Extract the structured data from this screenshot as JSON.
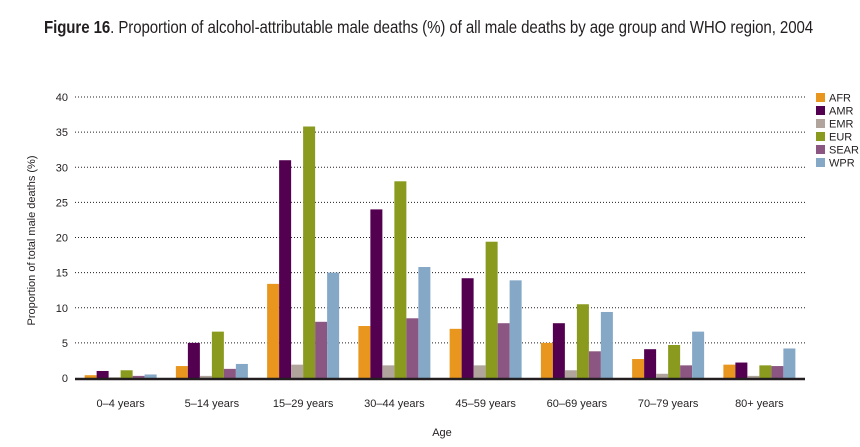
{
  "figure": {
    "label": "Figure 16",
    "title_rest": ". Proportion of alcohol-attributable male deaths (%) of all male deaths by age group and WHO region, 2004"
  },
  "chart_data": {
    "type": "bar",
    "title": "Figure 16. Proportion of alcohol-attributable male deaths (%) of all male deaths by age group and WHO region, 2004",
    "xlabel": "Age",
    "ylabel": "Proportion of total male deaths (%)",
    "ylim": [
      0,
      40
    ],
    "yticks": [
      0,
      5,
      10,
      15,
      20,
      25,
      30,
      35,
      40
    ],
    "grid": true,
    "legend_position": "right",
    "categories": [
      "0–4 years",
      "5–14 years",
      "15–29 years",
      "30–44 years",
      "45–59 years",
      "60–69 years",
      "70–79 years",
      "80+ years"
    ],
    "series": [
      {
        "name": "AFR",
        "color": "#e8961e",
        "values": [
          0.4,
          1.7,
          13.4,
          7.4,
          7.0,
          5.0,
          2.7,
          1.9
        ]
      },
      {
        "name": "AMR",
        "color": "#52004f",
        "values": [
          1.0,
          5.0,
          31.0,
          24.0,
          14.2,
          7.8,
          4.1,
          2.2
        ]
      },
      {
        "name": "EMR",
        "color": "#b0a49c",
        "values": [
          0.1,
          0.3,
          1.9,
          1.8,
          1.8,
          1.1,
          0.6,
          0.3
        ]
      },
      {
        "name": "EUR",
        "color": "#8a9a1e",
        "values": [
          1.1,
          6.6,
          35.8,
          28.0,
          19.4,
          10.5,
          4.7,
          1.8
        ]
      },
      {
        "name": "SEAR",
        "color": "#8b5682",
        "values": [
          0.3,
          1.3,
          8.0,
          8.5,
          7.8,
          3.8,
          1.8,
          1.7
        ]
      },
      {
        "name": "WPR",
        "color": "#84a8c6",
        "values": [
          0.5,
          2.0,
          15.0,
          15.8,
          13.9,
          9.4,
          6.6,
          4.2
        ]
      }
    ]
  }
}
